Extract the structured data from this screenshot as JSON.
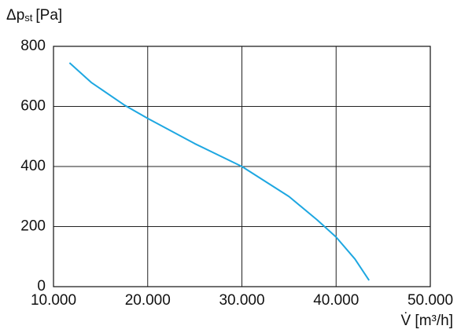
{
  "chart_data": {
    "type": "line",
    "y_label": {
      "symbol": "Δp",
      "subscript": "st",
      "unit": "[Pa]"
    },
    "x_label": "V̇ [m³/h]",
    "series": [
      {
        "color": "#1ea7e1",
        "x": [
          11700,
          14000,
          17500,
          20000,
          25000,
          30000,
          35000,
          38000,
          40000,
          42000,
          43500
        ],
        "values": [
          745,
          680,
          605,
          560,
          476,
          400,
          300,
          222,
          165,
          92,
          21
        ]
      }
    ],
    "xlim": [
      10000,
      50000
    ],
    "xticks": [
      {
        "value": 10000,
        "label": "10.000"
      },
      {
        "value": 20000,
        "label": "20.000"
      },
      {
        "value": 30000,
        "label": "30.000"
      },
      {
        "value": 40000,
        "label": "40.000"
      },
      {
        "value": 50000,
        "label": "50.000"
      }
    ],
    "ylim": [
      0,
      800
    ],
    "yticks": [
      0,
      200,
      400,
      600,
      800
    ],
    "grid": true
  }
}
